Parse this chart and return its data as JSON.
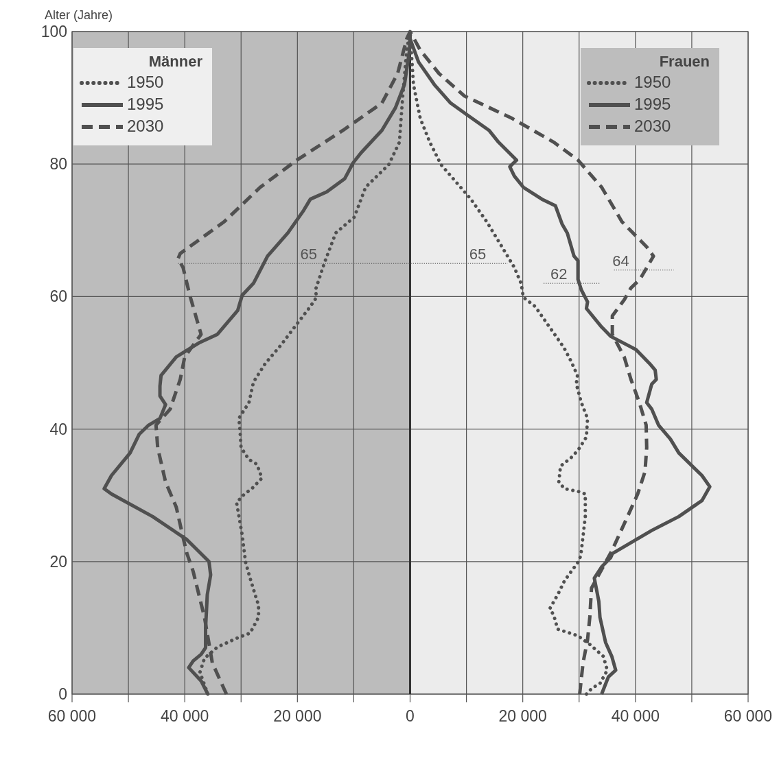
{
  "chart_data": {
    "type": "line",
    "ylabel": "Alter (Jahre)",
    "xlim": [
      -60000,
      60000
    ],
    "xticks": [
      {
        "value": -60000,
        "label": "60 000"
      },
      {
        "value": -50000,
        "label": null
      },
      {
        "value": -40000,
        "label": "40 000"
      },
      {
        "value": -30000,
        "label": null
      },
      {
        "value": -20000,
        "label": "20 000"
      },
      {
        "value": -10000,
        "label": null
      },
      0,
      {
        "value": 10000,
        "label": null
      },
      {
        "value": 20000,
        "label": "20 000"
      },
      {
        "value": 30000,
        "label": null
      },
      {
        "value": 40000,
        "label": "40 000"
      },
      {
        "value": 50000,
        "label": null
      },
      {
        "value": 60000,
        "label": "60 000"
      }
    ],
    "ylim": [
      0,
      100
    ],
    "yticks": [
      0,
      20,
      40,
      60,
      80,
      100
    ],
    "grid": true,
    "legend": "top",
    "bands": [
      {
        "axis": "x",
        "from": -60000,
        "to": 0,
        "color": "#bcbcbc"
      },
      {
        "axis": "x",
        "from": 0,
        "to": 60000,
        "color": "#ececec"
      }
    ],
    "ref_lines": [
      {
        "axis": "x",
        "value": 0,
        "color": "#333333"
      }
    ],
    "annotations": [
      "Männer",
      "Frauen",
      {
        "text": "65",
        "x": -18000,
        "y": 65
      },
      {
        "text": "65",
        "x": 12000,
        "y": 65
      },
      {
        "text": "62",
        "x": 26400,
        "y": 62
      },
      {
        "text": "64",
        "x": 37400,
        "y": 64
      }
    ],
    "series": [
      {
        "name": "1950",
        "color": "#505050",
        "line_style": "dotted",
        "x": [
          -35900,
          -37300,
          -36500,
          -34200,
          -30600,
          -28400,
          -26900,
          -26900,
          -27500,
          -28400,
          -29200,
          -29800,
          -30800,
          -29400,
          -28100,
          -26300,
          -27200,
          -28600,
          -30000,
          -30200,
          -30400,
          -28600,
          -27800,
          -25700,
          -22900,
          -20500,
          -17700,
          -16600,
          -16800,
          -15200,
          -13200,
          -9900,
          -7900,
          -3800,
          -1900,
          -1300,
          -600,
          0
        ],
        "values": [
          0,
          3.3,
          5.4,
          7.1,
          8.5,
          9.2,
          11.6,
          13.4,
          15,
          17.5,
          19.9,
          24,
          28.9,
          30.2,
          31,
          32.6,
          34.7,
          35.4,
          37.2,
          39.9,
          41.6,
          44,
          47.1,
          49.9,
          52.7,
          55.4,
          58.5,
          59.9,
          61,
          65.1,
          69.6,
          72,
          76.5,
          79.9,
          83.3,
          90.3,
          97.2,
          100
        ]
      },
      {
        "name": "1995",
        "color": "#505050",
        "line_style": "solid",
        "x": [
          -35900,
          -37100,
          -39300,
          -38500,
          -37100,
          -36300,
          -36300,
          -36000,
          -35400,
          -35700,
          -39600,
          -45700,
          -53000,
          -54300,
          -53000,
          -49700,
          -48100,
          -46400,
          -44400,
          -43400,
          -44400,
          -44400,
          -44200,
          -41500,
          -37500,
          -34200,
          -30600,
          -29800,
          -27800,
          -25300,
          -21700,
          -18900,
          -17700,
          -14800,
          -11600,
          -10100,
          -8700,
          -5000,
          -2600,
          -1000,
          -100,
          0
        ],
        "values": [
          0,
          2,
          4,
          5,
          6,
          7,
          10,
          15,
          18,
          20,
          23.3,
          26.8,
          30.2,
          31,
          33,
          36.4,
          39.2,
          40.6,
          41.6,
          43.7,
          45,
          46.5,
          48.1,
          50.9,
          53,
          54.3,
          57.9,
          60.2,
          62,
          66.1,
          69.6,
          73,
          74.7,
          75.8,
          77.8,
          80.2,
          81.7,
          85.1,
          88.5,
          92,
          97.2,
          100
        ]
      },
      {
        "name": "2030",
        "color": "#505050",
        "line_style": "dashed",
        "x": [
          -32600,
          -35100,
          -36500,
          -38500,
          -39600,
          -40200,
          -41500,
          -43400,
          -44800,
          -45100,
          -42600,
          -40800,
          -40000,
          -37100,
          -39100,
          -40300,
          -41200,
          -40800,
          -33000,
          -26600,
          -20100,
          -11900,
          -5000,
          -2200,
          -600,
          0
        ],
        "values": [
          0,
          4.7,
          11.6,
          18.5,
          21.2,
          23.3,
          28.2,
          32,
          37.2,
          40.6,
          43,
          47.5,
          50.9,
          54.3,
          60.2,
          64.4,
          65.7,
          66.5,
          71.3,
          76.5,
          80.6,
          85.1,
          89.2,
          93.7,
          98.9,
          100
        ]
      },
      {
        "name": "1950",
        "color": "#505050",
        "line_style": "dotted",
        "x": [
          31300,
          32300,
          33700,
          35000,
          34300,
          31900,
          29800,
          26200,
          25500,
          24800,
          26200,
          27400,
          29800,
          30300,
          31100,
          31100,
          29800,
          27400,
          26400,
          26700,
          28600,
          29800,
          31300,
          31500,
          30400,
          29500,
          29700,
          28600,
          27300,
          25000,
          22200,
          20100,
          19700,
          18500,
          16100,
          13600,
          10800,
          5500,
          3500,
          1800,
          600,
          200,
          0
        ],
        "values": [
          0,
          0.9,
          1.6,
          3.6,
          5.7,
          7.5,
          8.8,
          9.8,
          11.9,
          12.9,
          15,
          17.1,
          19.9,
          20.9,
          26.8,
          30.2,
          30.6,
          31,
          32,
          34.4,
          35.7,
          36.8,
          38.8,
          41.6,
          44,
          46.8,
          48.1,
          50.2,
          52.3,
          55.1,
          58.5,
          59.9,
          62,
          64.4,
          67.8,
          71.3,
          74.7,
          79.9,
          83.3,
          86.9,
          92,
          97.2,
          100
        ]
      },
      {
        "name": "1995",
        "color": "#505050",
        "line_style": "solid",
        "x": [
          34000,
          35200,
          36500,
          35800,
          34700,
          33700,
          33500,
          32700,
          34000,
          35600,
          35900,
          42900,
          47700,
          51800,
          53200,
          51800,
          47700,
          46200,
          44100,
          42900,
          42000,
          42900,
          43700,
          43500,
          42500,
          40100,
          35600,
          34000,
          31300,
          31500,
          30400,
          29800,
          29800,
          29100,
          27900,
          27000,
          25800,
          23400,
          20100,
          18500,
          17700,
          18900,
          15700,
          14000,
          10000,
          7200,
          4300,
          1500,
          0,
          0
        ],
        "values": [
          0,
          2.6,
          3.6,
          5.7,
          7.8,
          11.6,
          14,
          17.5,
          19.2,
          20.6,
          21.2,
          24.7,
          26.8,
          29.2,
          31.3,
          33,
          36.4,
          38.5,
          40.6,
          43,
          44,
          46.8,
          47.5,
          48.9,
          49.9,
          52,
          54,
          55.4,
          58.2,
          59.2,
          61,
          62.6,
          65.4,
          66.1,
          69.6,
          70.9,
          73.7,
          74.7,
          76.5,
          78.2,
          79.6,
          80.6,
          83.3,
          85.1,
          87.5,
          89.2,
          92,
          95.4,
          98.9,
          100
        ]
      },
      {
        "color": "#555555",
        "line_style": "dotted",
        "x": [
          -41200,
          17300
        ],
        "values": [
          65,
          65
        ]
      },
      {
        "color": "#555555",
        "line_style": "dotted",
        "x": [
          23700,
          33700
        ],
        "values": [
          62,
          62
        ]
      },
      {
        "color": "#555555",
        "line_style": "dotted",
        "x": [
          36200,
          46800
        ],
        "values": [
          64,
          64
        ]
      },
      {
        "name": "2030",
        "color": "#505050",
        "line_style": "dashed",
        "x": [
          30100,
          30700,
          31500,
          31900,
          32200,
          34700,
          35800,
          38600,
          40400,
          41700,
          42000,
          41900,
          40700,
          39200,
          38000,
          35900,
          35900,
          38000,
          39200,
          40800,
          43200,
          42000,
          37600,
          34000,
          29800,
          25500,
          18100,
          9600,
          5100,
          1800,
          0
        ],
        "values": [
          0,
          4.7,
          8.2,
          11.6,
          16,
          19.9,
          21.6,
          26.8,
          30.2,
          33.6,
          37.2,
          40.6,
          44,
          47.5,
          50.9,
          54.3,
          57.1,
          59.5,
          61.3,
          62.6,
          66.1,
          67.5,
          71.3,
          76.5,
          80.6,
          83.3,
          86.9,
          90.3,
          93.7,
          97.2,
          100
        ]
      }
    ]
  }
}
